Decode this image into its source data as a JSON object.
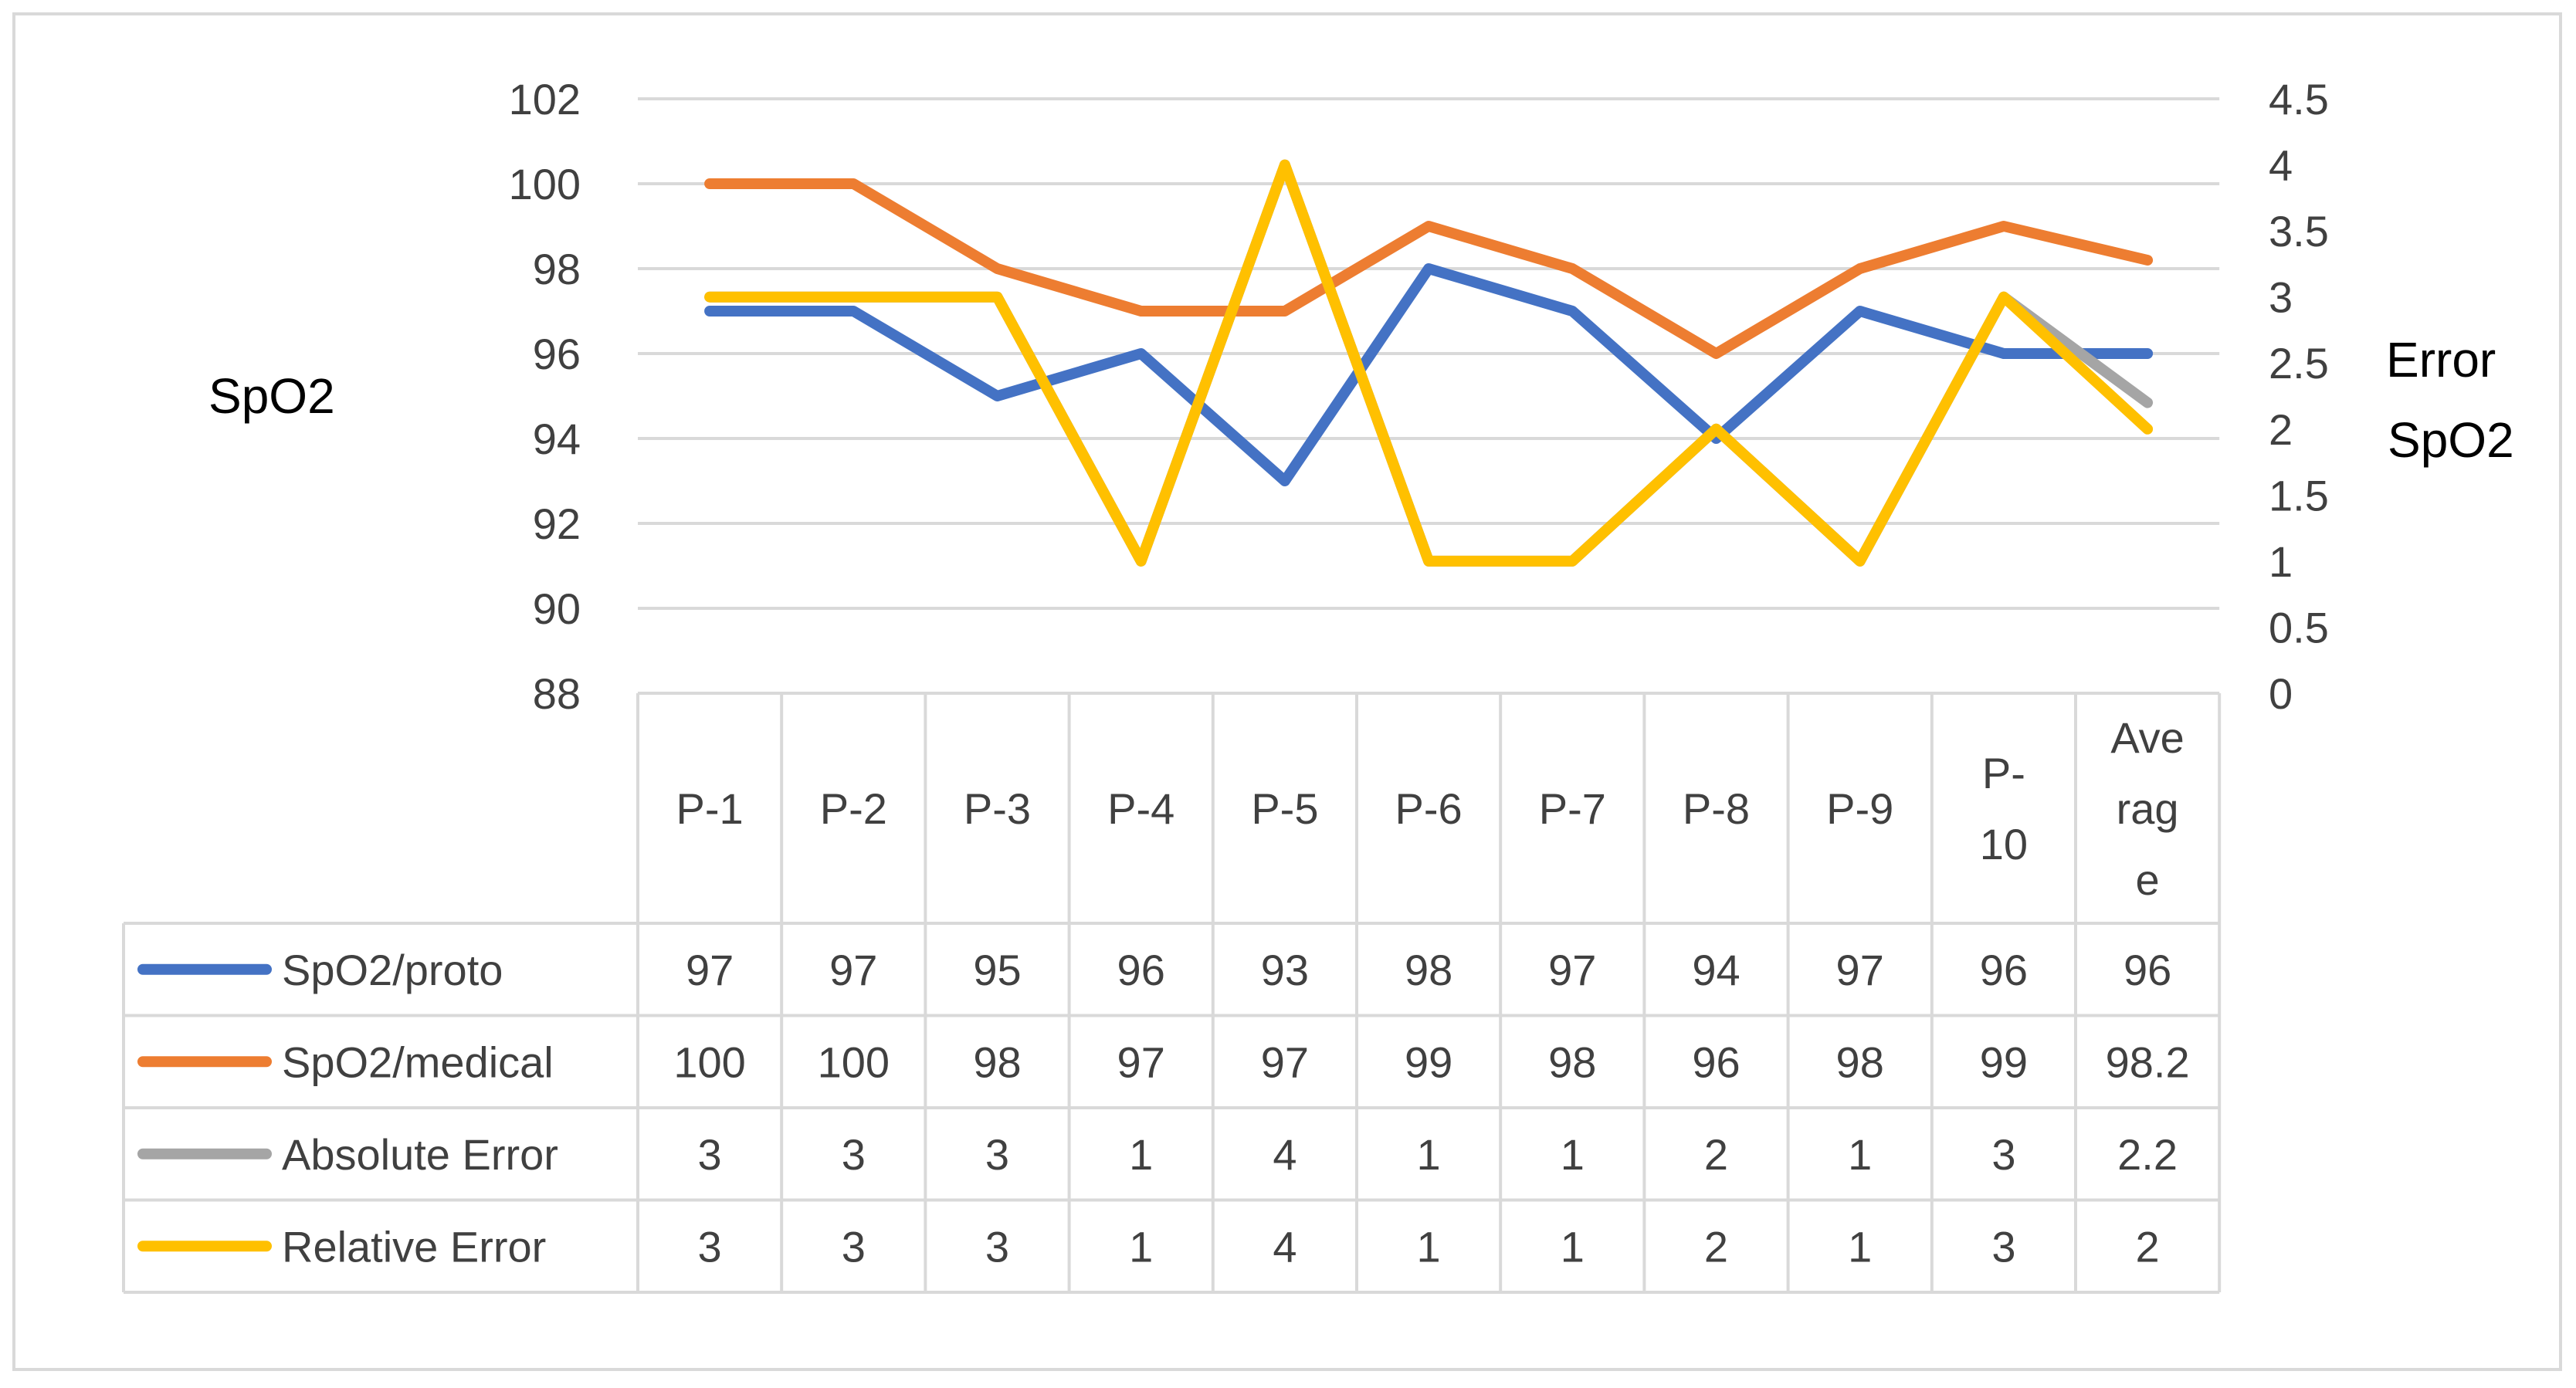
{
  "chart_data": {
    "type": "line",
    "title": "",
    "ylabel": "SpO2",
    "y2label": [
      "Error",
      "SpO2"
    ],
    "ylim": [
      88,
      102
    ],
    "ytick_step": 2,
    "y2lim": [
      0,
      4.5
    ],
    "y2tick_step": 0.5,
    "grid": true,
    "legend": "data-table",
    "categories": [
      [
        "P-1"
      ],
      [
        "P-2"
      ],
      [
        "P-3"
      ],
      [
        "P-4"
      ],
      [
        "P-5"
      ],
      [
        "P-6"
      ],
      [
        "P-7"
      ],
      [
        "P-8"
      ],
      [
        "P-9"
      ],
      [
        "P-",
        "10"
      ],
      [
        "Ave",
        "rag",
        "e"
      ]
    ],
    "series": [
      {
        "name": "SpO2/proto",
        "axis": "left",
        "color": "#4472C4",
        "values": [
          97,
          97,
          95,
          96,
          93,
          98,
          97,
          94,
          97,
          96,
          96
        ],
        "labels": [
          "97",
          "97",
          "95",
          "96",
          "93",
          "98",
          "97",
          "94",
          "97",
          "96",
          "96"
        ]
      },
      {
        "name": "SpO2/medical",
        "axis": "left",
        "color": "#ED7D31",
        "values": [
          100,
          100,
          98,
          97,
          97,
          99,
          98,
          96,
          98,
          99,
          98.2
        ],
        "labels": [
          "100",
          "100",
          "98",
          "97",
          "97",
          "99",
          "98",
          "96",
          "98",
          "99",
          "98.2"
        ]
      },
      {
        "name": "Absolute Error",
        "axis": "right",
        "color": "#A5A5A5",
        "values": [
          3,
          3,
          3,
          1,
          4,
          1,
          1,
          2,
          1,
          3,
          2.2
        ],
        "labels": [
          "3",
          "3",
          "3",
          "1",
          "4",
          "1",
          "1",
          "2",
          "1",
          "3",
          "2.2"
        ]
      },
      {
        "name": "Relative Error",
        "axis": "right",
        "color": "#FFC000",
        "values": [
          3,
          3,
          3,
          1,
          4,
          1,
          1,
          2,
          1,
          3,
          2
        ],
        "labels": [
          "3",
          "3",
          "3",
          "1",
          "4",
          "1",
          "1",
          "2",
          "1",
          "3",
          "2"
        ]
      }
    ]
  }
}
